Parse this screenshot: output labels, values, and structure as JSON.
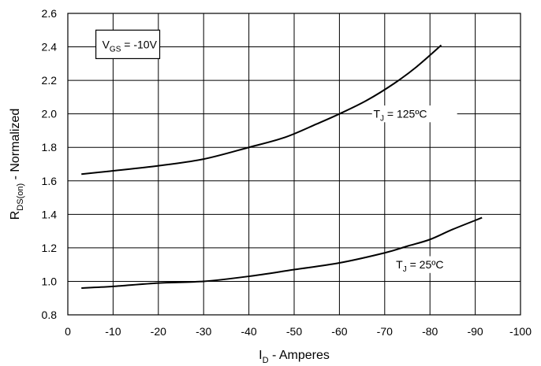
{
  "chart_data": {
    "type": "line",
    "xlabel": {
      "main": "I",
      "sub": "D",
      "suffix": " - Amperes"
    },
    "ylabel": {
      "main": "R",
      "sub": "DS(on)",
      "suffix": " - Normalized"
    },
    "xlim": [
      0,
      -100
    ],
    "ylim": [
      0.8,
      2.6
    ],
    "x_ticks": [
      0,
      -10,
      -20,
      -30,
      -40,
      -50,
      -60,
      -70,
      -80,
      -90,
      -100
    ],
    "y_ticks": [
      0.8,
      1.0,
      1.2,
      1.4,
      1.6,
      1.8,
      2.0,
      2.2,
      2.4,
      2.6
    ],
    "grid": true,
    "condition_box": {
      "main": "V",
      "sub": "GS",
      "suffix": " = -10V"
    },
    "series": [
      {
        "name": "T_J = 125ºC",
        "label": {
          "main": "T",
          "sub": "J",
          "suffix": " = 125ºC"
        },
        "x": [
          -3,
          -10,
          -20,
          -30,
          -40,
          -48,
          -55,
          -60,
          -66,
          -72,
          -77,
          -82.5
        ],
        "y": [
          1.64,
          1.66,
          1.69,
          1.73,
          1.8,
          1.86,
          1.94,
          2.0,
          2.08,
          2.18,
          2.28,
          2.41
        ]
      },
      {
        "name": "T_J = 25ºC",
        "label": {
          "main": "T",
          "sub": "J",
          "suffix": " = 25ºC"
        },
        "x": [
          -3,
          -10,
          -20,
          -30,
          -40,
          -50,
          -60,
          -70,
          -75,
          -80,
          -85,
          -91.5
        ],
        "y": [
          0.96,
          0.97,
          0.99,
          1.0,
          1.03,
          1.07,
          1.11,
          1.17,
          1.21,
          1.25,
          1.31,
          1.38
        ]
      }
    ]
  }
}
